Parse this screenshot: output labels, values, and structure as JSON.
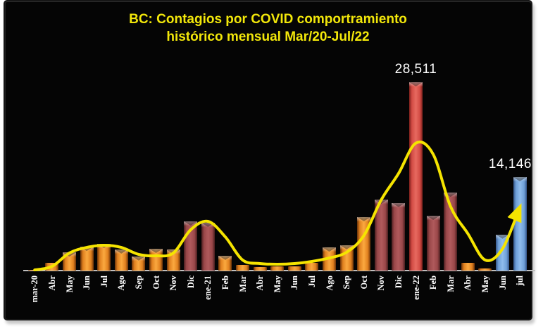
{
  "title": {
    "line1": "BC: Contagios por COVID comportramiento",
    "line2": "histórico mensual Mar/20-Jul/22"
  },
  "colors": {
    "page_background": "#FFFFFF",
    "panel_background": "#050505",
    "title_text": "#F2E70A",
    "axis_line": "#BFBFBF",
    "x_label_text": "#FFFFFF",
    "callout_text": "#FFFFFF",
    "trend_line": "#F5E400",
    "bar_orange": "#E0801F",
    "bar_maroon": "#9A4749",
    "bar_red": "#D24B44",
    "bar_blue": "#6FA0D8"
  },
  "palette": {
    "orange": {
      "edge": "#6E3408",
      "mid": "#E0801F",
      "light": "#FBA93F"
    },
    "maroon": {
      "edge": "#4A1E1F",
      "mid": "#9A4749",
      "light": "#B05A5C"
    },
    "red": {
      "edge": "#7E201C",
      "mid": "#D24B44",
      "light": "#E86A60"
    },
    "blue": {
      "edge": "#35568A",
      "mid": "#6FA0D8",
      "light": "#8FBCEC"
    }
  },
  "chart_data": {
    "type": "bar",
    "title": "BC: Contagios por COVID comportramiento histórico mensual Mar/20-Jul/22",
    "xlabel": "",
    "ylabel": "",
    "ylim": [
      0,
      30000
    ],
    "grid": false,
    "legend": false,
    "x_labels_rotated_90": true,
    "categories": [
      "mar-20",
      "Abr",
      "May",
      "Jun",
      "Jul",
      "Ago",
      "Sep",
      "Oct",
      "Nov",
      "Dic",
      "ene-21",
      "Feb",
      "Mar",
      "Abr",
      "May",
      "Jun",
      "Jul",
      "Ago",
      "Sep",
      "Oct",
      "Nov",
      "Dic",
      "ene-22",
      "Feb",
      "Mar",
      "Abr",
      "May",
      "Jun",
      "jul"
    ],
    "series": [
      {
        "name": "contagios-mensuales-bars",
        "type": "bar",
        "values": [
          150,
          1200,
          2750,
          3600,
          4050,
          3200,
          2150,
          3300,
          3150,
          7450,
          7250,
          2250,
          850,
          500,
          650,
          650,
          1200,
          3500,
          3850,
          8100,
          10750,
          10250,
          28511,
          8300,
          11800,
          1200,
          350,
          5450,
          14146
        ],
        "point_colors": [
          "orange",
          "orange",
          "orange",
          "orange",
          "orange",
          "orange",
          "orange",
          "orange",
          "orange",
          "maroon",
          "maroon",
          "orange",
          "orange",
          "orange",
          "orange",
          "orange",
          "orange",
          "orange",
          "orange",
          "orange",
          "maroon",
          "maroon",
          "red",
          "maroon",
          "maroon",
          "orange",
          "orange",
          "blue",
          "blue"
        ]
      },
      {
        "name": "tendencia-line",
        "type": "line",
        "color": "#F5E400",
        "smooth": true,
        "arrow_end": true,
        "values": [
          100,
          640,
          2660,
          3500,
          3830,
          3500,
          2450,
          2230,
          2660,
          6170,
          7450,
          5100,
          1600,
          1060,
          960,
          1060,
          1380,
          1900,
          2770,
          5300,
          10700,
          14700,
          19300,
          17600,
          9700,
          5600,
          1600,
          3300,
          9600
        ]
      }
    ],
    "annotations": [
      {
        "text": "28,511",
        "category_index": 22
      },
      {
        "text": "14,146",
        "category_index": 28
      }
    ]
  }
}
